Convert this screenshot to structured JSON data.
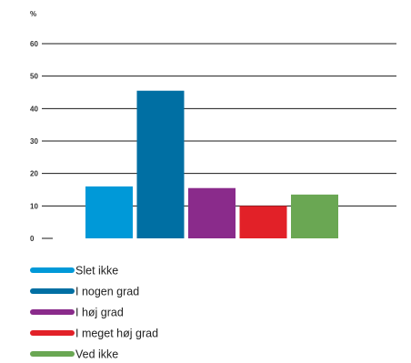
{
  "chart_data": {
    "type": "bar",
    "categories": [
      "Slet ikke",
      "I nogen grad",
      "I høj grad",
      "I meget høj grad",
      "Ved ikke"
    ],
    "values": [
      16,
      45.5,
      15.5,
      10,
      13.5
    ],
    "colors": [
      "#0099d8",
      "#006fa3",
      "#8a2b8b",
      "#e22128",
      "#6aa753"
    ],
    "unit_label": "%",
    "y_ticks": [
      0,
      10,
      20,
      30,
      40,
      50,
      60
    ],
    "ylim": [
      0,
      60
    ],
    "grid": true,
    "legend_position": "bottom-left",
    "legend": [
      {
        "label": "Slet ikke",
        "color": "#0099d8"
      },
      {
        "label": "I nogen grad",
        "color": "#006fa3"
      },
      {
        "label": "I høj grad",
        "color": "#8a2b8b"
      },
      {
        "label": "I meget høj grad",
        "color": "#e22128"
      },
      {
        "label": "Ved ikke",
        "color": "#6aa753"
      }
    ]
  }
}
